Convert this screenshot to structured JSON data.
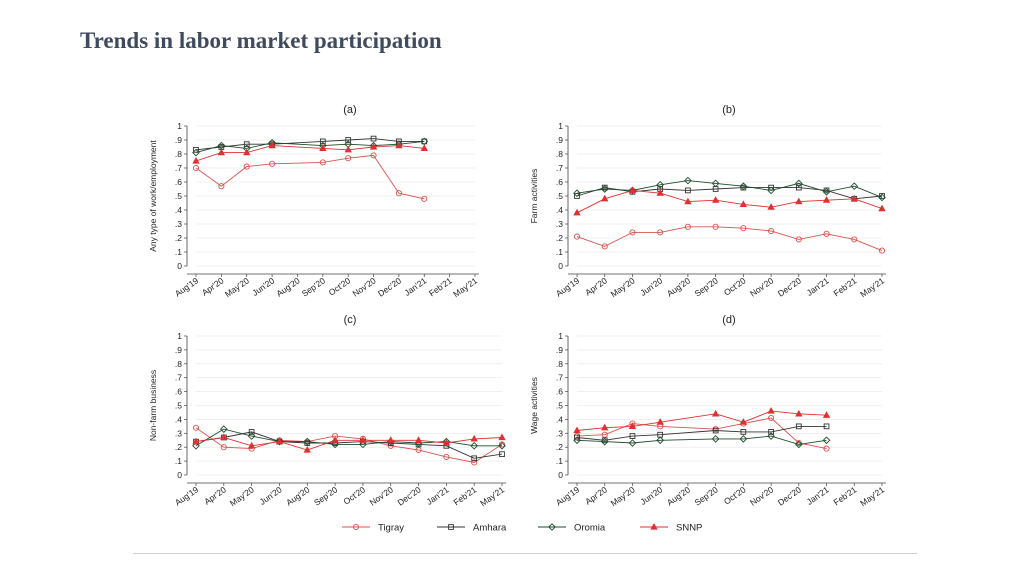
{
  "slide": {
    "title": "Trends in labor market participation"
  },
  "series_styles": [
    {
      "name": "Tigray",
      "color": "#d9534f",
      "marker": "circle"
    },
    {
      "name": "Amhara",
      "color": "#333333",
      "marker": "square"
    },
    {
      "name": "Oromia",
      "color": "#1f4d2e",
      "marker": "diamond"
    },
    {
      "name": "SNNP",
      "color": "#e03030",
      "marker": "triangle"
    }
  ],
  "chart_data": [
    {
      "type": "line",
      "title": "(a)",
      "ylabel": "Any type of work/employment",
      "xlabel": "",
      "ylim": [
        0,
        1
      ],
      "yticks": [
        "0",
        ".1",
        ".2",
        ".3",
        ".4",
        ".5",
        ".6",
        ".7",
        ".8",
        ".9",
        "1"
      ],
      "categories": [
        "Aug'19",
        "Apr'20",
        "May'20",
        "Jun'20",
        "Aug'20",
        "Sep'20",
        "Oct'20",
        "Nov'20",
        "Dec'20",
        "Jan'21",
        "Feb'21",
        "May'21"
      ],
      "legend": "bottom",
      "series": [
        {
          "name": "Tigray",
          "points": [
            [
              0,
              0.7
            ],
            [
              1,
              0.57
            ],
            [
              2,
              0.71
            ],
            [
              3,
              0.73
            ],
            [
              5,
              0.74
            ],
            [
              6,
              0.77
            ],
            [
              7,
              0.79
            ],
            [
              8,
              0.52
            ],
            [
              9,
              0.48
            ]
          ]
        },
        {
          "name": "Amhara",
          "points": [
            [
              0,
              0.83
            ],
            [
              1,
              0.85
            ],
            [
              2,
              0.87
            ],
            [
              3,
              0.87
            ],
            [
              5,
              0.89
            ],
            [
              6,
              0.9
            ],
            [
              7,
              0.91
            ],
            [
              8,
              0.89
            ],
            [
              9,
              0.89
            ]
          ]
        },
        {
          "name": "Oromia",
          "points": [
            [
              0,
              0.81
            ],
            [
              1,
              0.86
            ],
            [
              2,
              0.84
            ],
            [
              3,
              0.88
            ],
            [
              5,
              0.86
            ],
            [
              6,
              0.87
            ],
            [
              7,
              0.86
            ],
            [
              8,
              0.87
            ],
            [
              9,
              0.89
            ]
          ]
        },
        {
          "name": "SNNP",
          "points": [
            [
              0,
              0.75
            ],
            [
              1,
              0.81
            ],
            [
              2,
              0.81
            ],
            [
              3,
              0.86
            ],
            [
              5,
              0.84
            ],
            [
              6,
              0.83
            ],
            [
              7,
              0.85
            ],
            [
              8,
              0.86
            ],
            [
              9,
              0.84
            ]
          ]
        }
      ]
    },
    {
      "type": "line",
      "title": "(b)",
      "ylabel": "Farm activities",
      "xlabel": "",
      "ylim": [
        0,
        1
      ],
      "yticks": [
        "0",
        ".1",
        ".2",
        ".3",
        ".4",
        ".5",
        ".6",
        ".7",
        ".8",
        ".9",
        "1"
      ],
      "categories": [
        "Aug'19",
        "Apr'20",
        "May'20",
        "Jun'20",
        "Aug'20",
        "Sep'20",
        "Oct'20",
        "Nov'20",
        "Dec'20",
        "Jan'21",
        "Feb'21",
        "May'21"
      ],
      "legend": "bottom",
      "series": [
        {
          "name": "Tigray",
          "points": [
            [
              0,
              0.21
            ],
            [
              1,
              0.14
            ],
            [
              2,
              0.24
            ],
            [
              3,
              0.24
            ],
            [
              4,
              0.28
            ],
            [
              5,
              0.28
            ],
            [
              6,
              0.27
            ],
            [
              7,
              0.25
            ],
            [
              8,
              0.19
            ],
            [
              9,
              0.23
            ],
            [
              10,
              0.19
            ],
            [
              11,
              0.11
            ]
          ]
        },
        {
          "name": "Amhara",
          "points": [
            [
              0,
              0.5
            ],
            [
              1,
              0.56
            ],
            [
              2,
              0.53
            ],
            [
              3,
              0.55
            ],
            [
              4,
              0.54
            ],
            [
              5,
              0.55
            ],
            [
              6,
              0.56
            ],
            [
              7,
              0.56
            ],
            [
              8,
              0.56
            ],
            [
              9,
              0.54
            ],
            [
              10,
              0.48
            ],
            [
              11,
              0.5
            ]
          ]
        },
        {
          "name": "Oromia",
          "points": [
            [
              0,
              0.52
            ],
            [
              1,
              0.55
            ],
            [
              2,
              0.54
            ],
            [
              3,
              0.58
            ],
            [
              4,
              0.61
            ],
            [
              5,
              0.59
            ],
            [
              6,
              0.57
            ],
            [
              7,
              0.54
            ],
            [
              8,
              0.59
            ],
            [
              9,
              0.53
            ],
            [
              10,
              0.57
            ],
            [
              11,
              0.49
            ]
          ]
        },
        {
          "name": "SNNP",
          "points": [
            [
              0,
              0.38
            ],
            [
              1,
              0.48
            ],
            [
              2,
              0.54
            ],
            [
              3,
              0.52
            ],
            [
              4,
              0.46
            ],
            [
              5,
              0.47
            ],
            [
              6,
              0.44
            ],
            [
              7,
              0.42
            ],
            [
              8,
              0.46
            ],
            [
              9,
              0.47
            ],
            [
              10,
              0.48
            ],
            [
              11,
              0.41
            ]
          ]
        }
      ]
    },
    {
      "type": "line",
      "title": "(c)",
      "ylabel": "Non-farm business",
      "xlabel": "",
      "ylim": [
        0,
        1
      ],
      "yticks": [
        "0",
        ".1",
        ".2",
        ".3",
        ".4",
        ".5",
        ".6",
        ".7",
        ".8",
        ".9",
        "1"
      ],
      "categories": [
        "Aug'19",
        "Apr'20",
        "May'20",
        "Jun'20",
        "Aug'20",
        "Sep'20",
        "Oct'20",
        "Nov'20",
        "Dec'20",
        "Jan'21",
        "Feb'21",
        "May'21"
      ],
      "legend": "bottom",
      "series": [
        {
          "name": "Tigray",
          "points": [
            [
              0,
              0.34
            ],
            [
              1,
              0.2
            ],
            [
              2,
              0.19
            ],
            [
              3,
              0.25
            ],
            [
              4,
              0.24
            ],
            [
              5,
              0.28
            ],
            [
              6,
              0.26
            ],
            [
              7,
              0.21
            ],
            [
              8,
              0.18
            ],
            [
              9,
              0.13
            ],
            [
              10,
              0.09
            ],
            [
              11,
              0.22
            ]
          ]
        },
        {
          "name": "Amhara",
          "points": [
            [
              0,
              0.24
            ],
            [
              1,
              0.27
            ],
            [
              2,
              0.31
            ],
            [
              3,
              0.24
            ],
            [
              4,
              0.23
            ],
            [
              5,
              0.23
            ],
            [
              6,
              0.24
            ],
            [
              7,
              0.23
            ],
            [
              8,
              0.22
            ],
            [
              9,
              0.21
            ],
            [
              10,
              0.12
            ],
            [
              11,
              0.15
            ]
          ]
        },
        {
          "name": "Oromia",
          "points": [
            [
              0,
              0.21
            ],
            [
              1,
              0.33
            ],
            [
              2,
              0.28
            ],
            [
              3,
              0.24
            ],
            [
              4,
              0.24
            ],
            [
              5,
              0.22
            ],
            [
              6,
              0.22
            ],
            [
              7,
              0.24
            ],
            [
              8,
              0.23
            ],
            [
              9,
              0.24
            ],
            [
              10,
              0.21
            ],
            [
              11,
              0.21
            ]
          ]
        },
        {
          "name": "SNNP",
          "points": [
            [
              0,
              0.24
            ],
            [
              1,
              0.27
            ],
            [
              2,
              0.21
            ],
            [
              3,
              0.24
            ],
            [
              4,
              0.18
            ],
            [
              5,
              0.25
            ],
            [
              6,
              0.25
            ],
            [
              7,
              0.25
            ],
            [
              8,
              0.25
            ],
            [
              9,
              0.23
            ],
            [
              10,
              0.26
            ],
            [
              11,
              0.27
            ]
          ]
        }
      ]
    },
    {
      "type": "line",
      "title": "(d)",
      "ylabel": "Wage activities",
      "xlabel": "",
      "ylim": [
        0,
        1
      ],
      "yticks": [
        "0",
        ".1",
        ".2",
        ".3",
        ".4",
        ".5",
        ".6",
        ".7",
        ".8",
        ".9",
        "1"
      ],
      "categories": [
        "Aug'19",
        "Apr'20",
        "May'20",
        "Jun'20",
        "Aug'20",
        "Sep'20",
        "Oct'20",
        "Nov'20",
        "Dec'20",
        "Jan'21",
        "Feb'21",
        "May'21"
      ],
      "legend": "bottom",
      "series": [
        {
          "name": "Tigray",
          "points": [
            [
              0,
              0.28
            ],
            [
              1,
              0.29
            ],
            [
              2,
              0.37
            ],
            [
              3,
              0.35
            ],
            [
              5,
              0.33
            ],
            [
              6,
              0.37
            ],
            [
              7,
              0.41
            ],
            [
              8,
              0.23
            ],
            [
              9,
              0.19
            ]
          ]
        },
        {
          "name": "Amhara",
          "points": [
            [
              0,
              0.27
            ],
            [
              1,
              0.25
            ],
            [
              2,
              0.28
            ],
            [
              3,
              0.29
            ],
            [
              5,
              0.32
            ],
            [
              6,
              0.31
            ],
            [
              7,
              0.31
            ],
            [
              8,
              0.35
            ],
            [
              9,
              0.35
            ]
          ]
        },
        {
          "name": "Oromia",
          "points": [
            [
              0,
              0.25
            ],
            [
              1,
              0.24
            ],
            [
              2,
              0.23
            ],
            [
              3,
              0.25
            ],
            [
              5,
              0.26
            ],
            [
              6,
              0.26
            ],
            [
              7,
              0.28
            ],
            [
              8,
              0.22
            ],
            [
              9,
              0.25
            ]
          ]
        },
        {
          "name": "SNNP",
          "points": [
            [
              0,
              0.32
            ],
            [
              1,
              0.34
            ],
            [
              2,
              0.35
            ],
            [
              3,
              0.38
            ],
            [
              5,
              0.44
            ],
            [
              6,
              0.38
            ],
            [
              7,
              0.46
            ],
            [
              8,
              0.44
            ],
            [
              9,
              0.43
            ]
          ]
        }
      ]
    }
  ]
}
